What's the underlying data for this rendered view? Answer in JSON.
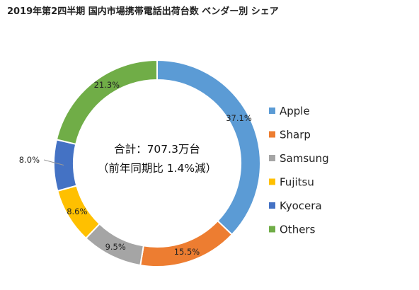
{
  "chart_data": {
    "type": "pie",
    "title": "2019年第2四半期 国内市場携帯電話出荷台数 ベンダー別 シェア",
    "categories": [
      "Apple",
      "Sharp",
      "Samsung",
      "Fujitsu",
      "Kyocera",
      "Others"
    ],
    "values": [
      37.1,
      15.5,
      9.5,
      8.6,
      8.0,
      21.3
    ],
    "value_labels": [
      "37.1%",
      "15.5%",
      "9.5%",
      "8.6%",
      "8.0%",
      "21.3%"
    ],
    "colors": [
      "#5B9BD5",
      "#ED7D31",
      "#A5A5A5",
      "#FFC000",
      "#4472C4",
      "#70AD47"
    ],
    "center_text": [
      "合計：707.3万台",
      "（前年同期比 1.4%減）"
    ],
    "legend": {
      "position": "right",
      "entries": [
        "Apple",
        "Sharp",
        "Samsung",
        "Fujitsu",
        "Kyocera",
        "Others"
      ]
    }
  }
}
